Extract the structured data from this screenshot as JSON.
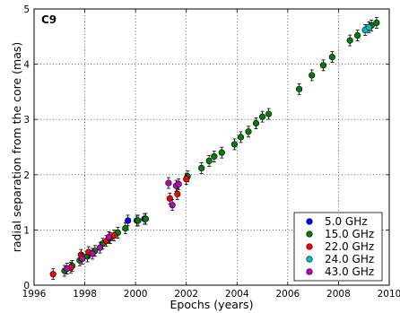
{
  "chart_data": {
    "type": "scatter",
    "xlabel": "Epochs (years)",
    "ylabel": "radial separation from the core (mas)",
    "annotation": "C9",
    "xlim": [
      1996,
      2010
    ],
    "ylim": [
      0,
      5
    ],
    "xticks": [
      1996,
      1998,
      2000,
      2002,
      2004,
      2006,
      2008,
      2010
    ],
    "yticks": [
      0,
      1,
      2,
      3,
      4,
      5
    ],
    "grid": true,
    "legend_position": "bottom-right",
    "series": [
      {
        "name": "5.0 GHz",
        "color": "#0000ff",
        "points": [
          {
            "x": 1999.7,
            "y": 1.17
          },
          {
            "x": 2000.05,
            "y": 1.17
          },
          {
            "x": 2000.35,
            "y": 1.2
          }
        ]
      },
      {
        "name": "15.0 GHz",
        "color": "#008000",
        "points": [
          {
            "x": 1997.2,
            "y": 0.26
          },
          {
            "x": 1997.5,
            "y": 0.35
          },
          {
            "x": 1997.8,
            "y": 0.45
          },
          {
            "x": 1998.1,
            "y": 0.52
          },
          {
            "x": 1998.4,
            "y": 0.62
          },
          {
            "x": 1998.7,
            "y": 0.75
          },
          {
            "x": 1999.0,
            "y": 0.85
          },
          {
            "x": 1999.3,
            "y": 0.95
          },
          {
            "x": 1999.6,
            "y": 1.03
          },
          {
            "x": 2000.1,
            "y": 1.17
          },
          {
            "x": 2000.4,
            "y": 1.2
          },
          {
            "x": 2002.05,
            "y": 1.97
          },
          {
            "x": 2002.6,
            "y": 2.12
          },
          {
            "x": 2002.9,
            "y": 2.25
          },
          {
            "x": 2003.1,
            "y": 2.33
          },
          {
            "x": 2003.4,
            "y": 2.4
          },
          {
            "x": 2003.9,
            "y": 2.55
          },
          {
            "x": 2004.15,
            "y": 2.68
          },
          {
            "x": 2004.45,
            "y": 2.78
          },
          {
            "x": 2004.75,
            "y": 2.93
          },
          {
            "x": 2005.0,
            "y": 3.05
          },
          {
            "x": 2005.25,
            "y": 3.1
          },
          {
            "x": 2006.45,
            "y": 3.55
          },
          {
            "x": 2006.95,
            "y": 3.8
          },
          {
            "x": 2007.4,
            "y": 3.98
          },
          {
            "x": 2007.75,
            "y": 4.13
          },
          {
            "x": 2008.45,
            "y": 4.43
          },
          {
            "x": 2008.75,
            "y": 4.52
          },
          {
            "x": 2009.3,
            "y": 4.7
          },
          {
            "x": 2009.5,
            "y": 4.75
          }
        ]
      },
      {
        "name": "22.0 GHz",
        "color": "#ff0000",
        "points": [
          {
            "x": 1996.75,
            "y": 0.2
          },
          {
            "x": 1997.45,
            "y": 0.32
          },
          {
            "x": 1997.85,
            "y": 0.55
          },
          {
            "x": 1998.15,
            "y": 0.6
          },
          {
            "x": 1998.85,
            "y": 0.8
          },
          {
            "x": 1999.15,
            "y": 0.9
          },
          {
            "x": 2001.35,
            "y": 1.57
          },
          {
            "x": 2001.65,
            "y": 1.65
          },
          {
            "x": 2002.0,
            "y": 1.92
          }
        ]
      },
      {
        "name": "24.0 GHz",
        "color": "#00bfbf",
        "points": [
          {
            "x": 2009.05,
            "y": 4.62
          },
          {
            "x": 2009.2,
            "y": 4.67
          }
        ]
      },
      {
        "name": "43.0 GHz",
        "color": "#bf00bf",
        "points": [
          {
            "x": 1997.3,
            "y": 0.3
          },
          {
            "x": 1997.9,
            "y": 0.48
          },
          {
            "x": 1998.3,
            "y": 0.57
          },
          {
            "x": 1998.6,
            "y": 0.68
          },
          {
            "x": 1998.95,
            "y": 0.87
          },
          {
            "x": 2001.3,
            "y": 1.85
          },
          {
            "x": 2001.45,
            "y": 1.45
          },
          {
            "x": 2001.6,
            "y": 1.8
          },
          {
            "x": 2001.7,
            "y": 1.83
          }
        ]
      }
    ]
  }
}
